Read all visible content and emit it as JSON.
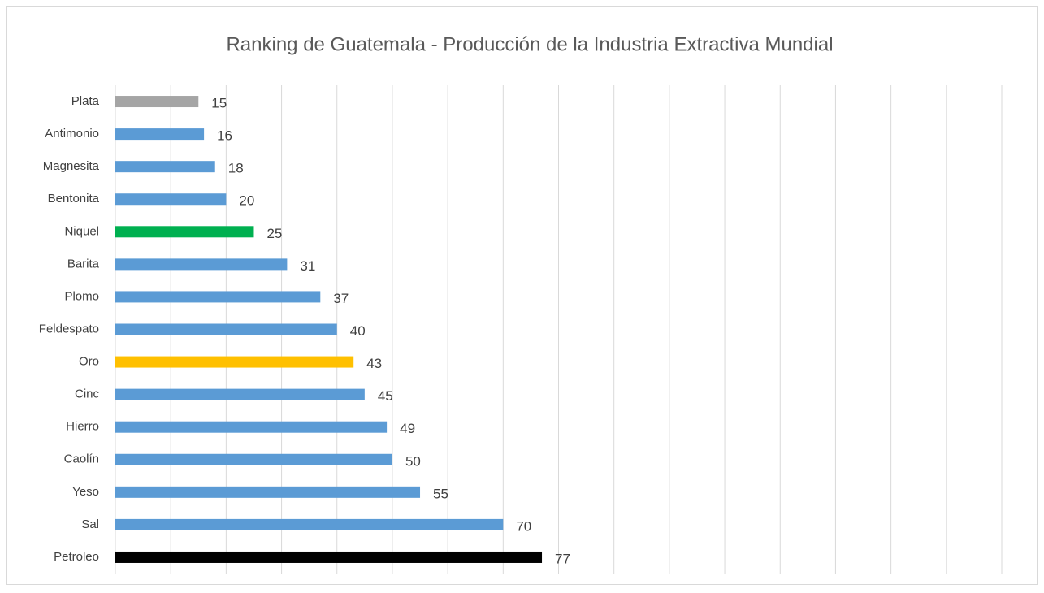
{
  "chart_data": {
    "type": "bar",
    "orientation": "horizontal",
    "title": "Ranking de Guatemala - Producción de la Industria Extractiva Mundial",
    "categories": [
      "Plata",
      "Antimonio",
      "Magnesita",
      "Bentonita",
      "Niquel",
      "Barita",
      "Plomo",
      "Feldespato",
      "Oro",
      "Cinc",
      "Hierro",
      "Caolín",
      "Yeso",
      "Sal",
      "Petroleo"
    ],
    "values": [
      15,
      16,
      18,
      20,
      25,
      31,
      37,
      40,
      43,
      45,
      49,
      50,
      55,
      70,
      77
    ],
    "colors": [
      "#a5a5a5",
      "#5b9bd5",
      "#5b9bd5",
      "#5b9bd5",
      "#00b050",
      "#5b9bd5",
      "#5b9bd5",
      "#5b9bd5",
      "#ffc000",
      "#5b9bd5",
      "#5b9bd5",
      "#5b9bd5",
      "#5b9bd5",
      "#5b9bd5",
      "#000000"
    ],
    "xlim": [
      0,
      160
    ],
    "xticks": [
      0,
      10,
      20,
      30,
      40,
      50,
      60,
      70,
      80,
      90,
      100,
      110,
      120,
      130,
      140,
      150,
      160
    ],
    "grid": true
  }
}
